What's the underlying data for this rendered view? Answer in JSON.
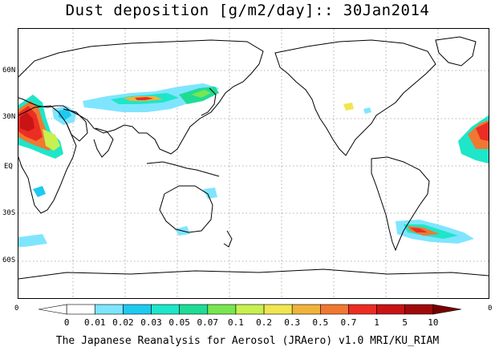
{
  "title": "Dust deposition [g/m2/day]:: 30Jan2014",
  "lat_labels": [
    "60N",
    "30N",
    "EQ",
    "30S",
    "60S"
  ],
  "colorbar": {
    "end_left": "0",
    "end_right": "0",
    "ticks": [
      "0",
      "0.01",
      "0.02",
      "0.03",
      "0.05",
      "0.07",
      "0.1",
      "0.2",
      "0.3",
      "0.5",
      "0.7",
      "1",
      "5",
      "10"
    ],
    "colors": [
      "#ffffff",
      "#ffffff",
      "#7fe5ff",
      "#1ecaf0",
      "#1ee6c8",
      "#1edc96",
      "#78e650",
      "#c8f050",
      "#f0e650",
      "#f0b43c",
      "#f07832",
      "#ec2d23",
      "#c81414",
      "#a00a0a",
      "#780000"
    ]
  },
  "credit": "The Japanese Reanalysis for Aerosol (JRAero) v1.0 MRI/KU_RIAM",
  "legend_colors": {
    "coast": "#000000",
    "grid": "#9a9a9a"
  }
}
